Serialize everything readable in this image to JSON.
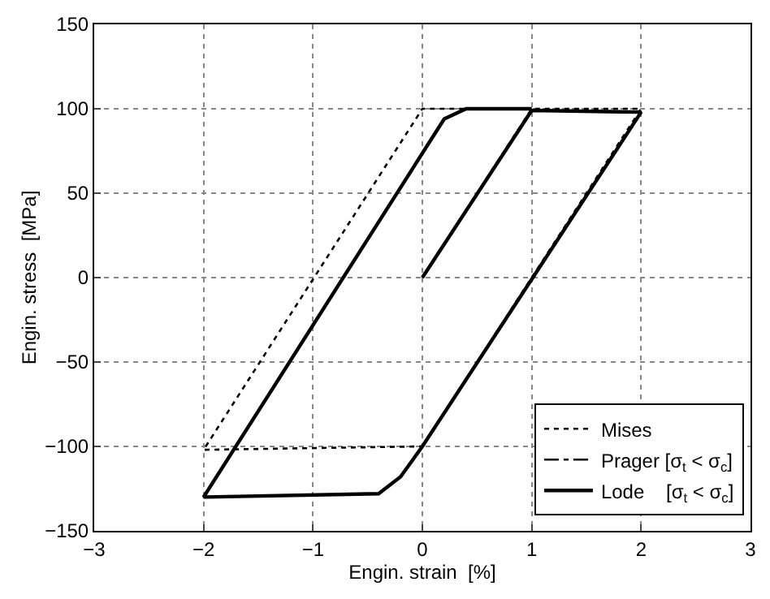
{
  "chart_data": {
    "type": "line",
    "xlabel": "Engin. strain  [%]",
    "ylabel": "Engin. stress  [MPa]",
    "xlim": [
      -3,
      3
    ],
    "xticks": [
      -3,
      -2,
      -1,
      0,
      1,
      2,
      3
    ],
    "ylim": [
      -150,
      150
    ],
    "yticks": [
      -150,
      -100,
      -50,
      0,
      50,
      100,
      150
    ],
    "grid": true,
    "legend": "bottom right",
    "series": [
      {
        "name": "Mises",
        "color": "#000000",
        "line_style": "dotted",
        "x": [
          0,
          1,
          2,
          0,
          -2,
          0,
          1
        ],
        "values": [
          0,
          100,
          100,
          -100,
          -102,
          100,
          100
        ]
      },
      {
        "name": "Prager [σ$_{t}$ < σ$_{c}$]",
        "color": "#000000",
        "line_style": "dashdot"
      },
      {
        "name": "Lode    [σ$_{t}$ < σ$_{c}$]",
        "color": "#000000",
        "line_style": "solid",
        "x": [
          0,
          1,
          2,
          0,
          -0.2,
          -0.4,
          -2,
          0.2,
          0.4,
          1
        ],
        "values": [
          0,
          99,
          98,
          -100,
          -118,
          -128,
          -130,
          94,
          100,
          100
        ]
      }
    ]
  }
}
